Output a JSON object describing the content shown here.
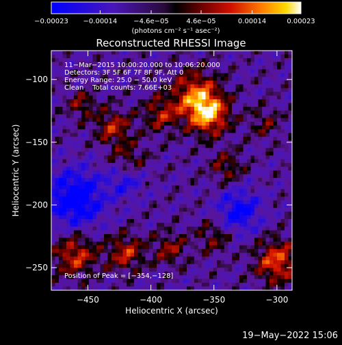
{
  "chart_data": {
    "type": "heatmap",
    "title": "Reconstructed RHESSI Image",
    "xlabel": "Heliocentric X (arcsec)",
    "ylabel": "Heliocentric Y (arcsec)",
    "xlim": [
      -479,
      -288
    ],
    "ylim": [
      -268,
      -77
    ],
    "xticks": [
      {
        "v": -450,
        "label": "−450"
      },
      {
        "v": -400,
        "label": "−400"
      },
      {
        "v": -350,
        "label": "−350"
      },
      {
        "v": -300,
        "label": "−300"
      }
    ],
    "yticks": [
      {
        "v": -100,
        "label": "−100"
      },
      {
        "v": -150,
        "label": "−150"
      },
      {
        "v": -200,
        "label": "−200"
      },
      {
        "v": -250,
        "label": "−250"
      }
    ],
    "colorbar": {
      "min": -0.00023,
      "max": 0.00023,
      "ticks": [
        {
          "v": -0.00023,
          "label": "−0.00023"
        },
        {
          "v": -0.00014,
          "label": "−0.00014"
        },
        {
          "v": -4.6e-05,
          "label": "−4.6e−05"
        },
        {
          "v": 4.6e-05,
          "label": "4.6e−05"
        },
        {
          "v": 0.00014,
          "label": "0.00014"
        },
        {
          "v": 0.00023,
          "label": "0.00023"
        }
      ],
      "units": "(photons cm⁻² s⁻¹ asec⁻²)"
    },
    "annotations": [
      "11−Mar−2015 10:00:20.000 to 10:06:20.000",
      "Detectors: 3F 5F 6F 7F 8F 9F, Att 0",
      "Energy Range: 25.0 − 50.0 keV",
      "Clean    Total counts: 7.66E+03"
    ],
    "peak_label": "Position of Peak = [−354,−128]",
    "hotspots": [
      {
        "x": -354,
        "y": -128,
        "amp": 1.0,
        "r": 11
      },
      {
        "x": -365,
        "y": -112,
        "amp": 0.8,
        "r": 13
      },
      {
        "x": -392,
        "y": -128,
        "amp": 0.55,
        "r": 10
      },
      {
        "x": -430,
        "y": -138,
        "amp": 0.6,
        "r": 10
      },
      {
        "x": -455,
        "y": -120,
        "amp": 0.45,
        "r": 8
      },
      {
        "x": -418,
        "y": -165,
        "amp": 0.45,
        "r": 10
      },
      {
        "x": -340,
        "y": -170,
        "amp": 0.45,
        "r": 9
      },
      {
        "x": -310,
        "y": -135,
        "amp": 0.35,
        "r": 9
      },
      {
        "x": -460,
        "y": -240,
        "amp": 0.7,
        "r": 12
      },
      {
        "x": -420,
        "y": -238,
        "amp": 0.65,
        "r": 10
      },
      {
        "x": -385,
        "y": -235,
        "amp": 0.5,
        "r": 9
      },
      {
        "x": -300,
        "y": -245,
        "amp": 0.8,
        "r": 12
      },
      {
        "x": -350,
        "y": -225,
        "amp": 0.4,
        "r": 10
      }
    ],
    "coldspots": [
      {
        "x": -460,
        "y": -195,
        "amp": -0.9,
        "r": 16
      },
      {
        "x": -330,
        "y": -205,
        "amp": -0.7,
        "r": 12
      },
      {
        "x": -420,
        "y": -180,
        "amp": -0.5,
        "r": 10
      }
    ]
  },
  "footer": {
    "date": "19−May−2022 15:06"
  }
}
